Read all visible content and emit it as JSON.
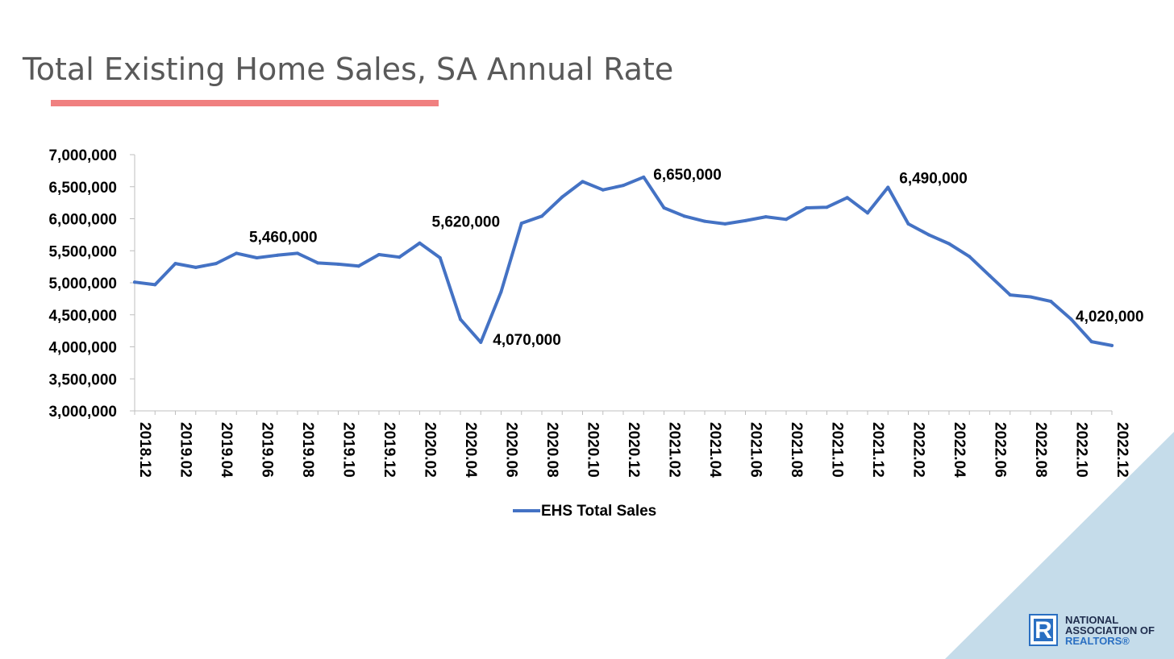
{
  "colors": {
    "title": "#595959",
    "title_underline": "#f08080",
    "series": "#4472c4",
    "axis": "#bfbfbf",
    "corner": "#c5dcea",
    "logo_blue": "#2a6fc2",
    "logo_dark": "#1f2d4d"
  },
  "chart_data": {
    "type": "line",
    "title": "Total Existing Home Sales, SA Annual Rate",
    "x": [
      "2018.12",
      "2019.01",
      "2019.02",
      "2019.03",
      "2019.04",
      "2019.05",
      "2019.06",
      "2019.07",
      "2019.08",
      "2019.09",
      "2019.10",
      "2019.11",
      "2019.12",
      "2020.01",
      "2020.02",
      "2020.03",
      "2020.04",
      "2020.05",
      "2020.06",
      "2020.07",
      "2020.08",
      "2020.09",
      "2020.10",
      "2020.11",
      "2020.12",
      "2021.01",
      "2021.02",
      "2021.03",
      "2021.04",
      "2021.05",
      "2021.06",
      "2021.07",
      "2021.08",
      "2021.09",
      "2021.10",
      "2021.11",
      "2021.12",
      "2022.01",
      "2022.02",
      "2022.03",
      "2022.04",
      "2022.05",
      "2022.06",
      "2022.07",
      "2022.08",
      "2022.09",
      "2022.10",
      "2022.11",
      "2022.12"
    ],
    "x_tick_labels": [
      "2018.12",
      "2019.02",
      "2019.04",
      "2019.06",
      "2019.08",
      "2019.10",
      "2019.12",
      "2020.02",
      "2020.04",
      "2020.06",
      "2020.08",
      "2020.10",
      "2020.12",
      "2021.02",
      "2021.04",
      "2021.06",
      "2021.08",
      "2021.10",
      "2021.12",
      "2022.02",
      "2022.04",
      "2022.06",
      "2022.08",
      "2022.10",
      "2022.12"
    ],
    "series": [
      {
        "name": "EHS Total Sales",
        "values": [
          5010000,
          4970000,
          5300000,
          5240000,
          5300000,
          5460000,
          5390000,
          5430000,
          5460000,
          5310000,
          5290000,
          5260000,
          5440000,
          5400000,
          5620000,
          5390000,
          4430000,
          4070000,
          4860000,
          5930000,
          6040000,
          6340000,
          6580000,
          6450000,
          6520000,
          6650000,
          6170000,
          6040000,
          5960000,
          5920000,
          5970000,
          6030000,
          5990000,
          6170000,
          6180000,
          6330000,
          6090000,
          6490000,
          5920000,
          5750000,
          5610000,
          5410000,
          5110000,
          4810000,
          4780000,
          4710000,
          4430000,
          4080000,
          4020000
        ]
      }
    ],
    "annotations": [
      {
        "index": 8,
        "text": "5,460,000"
      },
      {
        "index": 14,
        "text": "5,620,000"
      },
      {
        "index": 17,
        "text": "4,070,000"
      },
      {
        "index": 25,
        "text": "6,650,000"
      },
      {
        "index": 37,
        "text": "6,490,000"
      },
      {
        "index": 48,
        "text": "4,020,000"
      }
    ],
    "y_ticks": [
      "3,000,000",
      "3,500,000",
      "4,000,000",
      "4,500,000",
      "5,000,000",
      "5,500,000",
      "6,000,000",
      "6,500,000",
      "7,000,000"
    ],
    "ylim": [
      3000000,
      7000000
    ],
    "grid": false,
    "legend_position": "bottom-center"
  },
  "logo": {
    "mark": "R",
    "line1": "NATIONAL",
    "line2": "ASSOCIATION OF",
    "line3": "REALTORS®"
  }
}
